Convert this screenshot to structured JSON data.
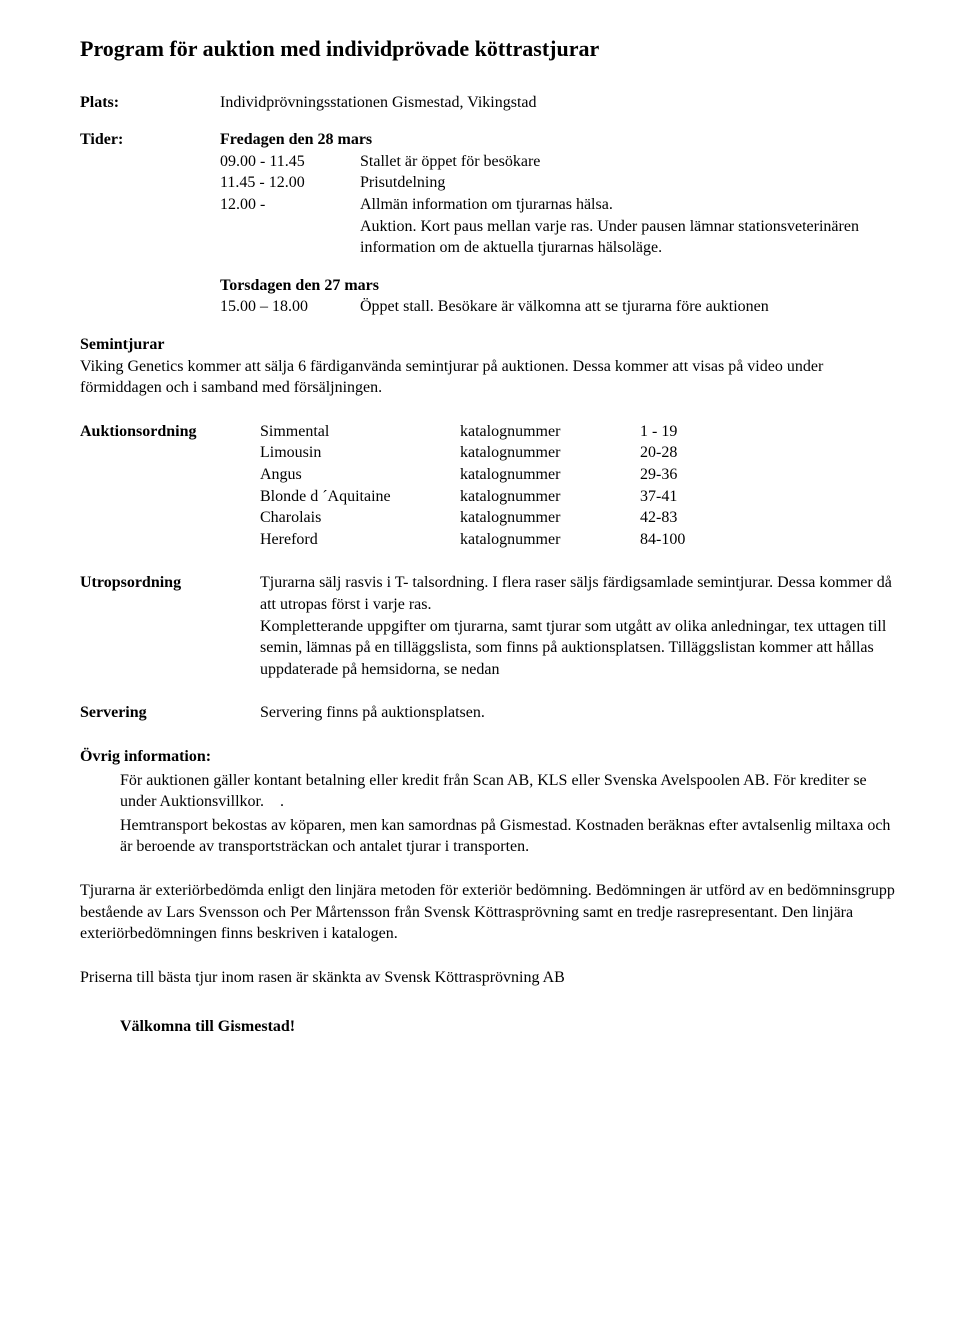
{
  "title": "Program för auktion med individprövade köttrastjurar",
  "plats": {
    "label": "Plats",
    "text": "Individprövningsstationen Gismestad, Vikingstad"
  },
  "tider": {
    "label": "Tider",
    "day1": {
      "heading": "Fredagen den 28 mars"
    },
    "sched": [
      {
        "time": "09.00 - 11.45",
        "desc": "Stallet är öppet för besökare"
      },
      {
        "time": "11.45 - 12.00",
        "desc": "Prisutdelning"
      },
      {
        "time": "12.00 -",
        "desc": "Allmän information om tjurarnas hälsa."
      }
    ],
    "note1": "Auktion. Kort paus mellan varje ras. Under pausen lämnar stationsveterinären information om de aktuella tjurarnas hälsoläge.",
    "day2": {
      "heading": "Torsdagen den 27 mars"
    },
    "sched2": {
      "time": "15.00 – 18.00",
      "desc": "Öppet stall. Besökare är välkomna att se tjurarna före auktionen"
    }
  },
  "semintjurar": {
    "heading": "Semintjurar",
    "text": "Viking Genetics kommer att sälja 6 färdiganvända semintjurar på auktionen. Dessa kommer att visas på video under förmiddagen och i samband med försäljningen."
  },
  "auktionsordning": {
    "label": "Auktionsordning",
    "katalog_word": "katalognummer",
    "rows": [
      {
        "breed": "Simmental",
        "range": "1 - 19"
      },
      {
        "breed": "Limousin",
        "range": "20-28"
      },
      {
        "breed": "Angus",
        "range": "29-36"
      },
      {
        "breed": "Blonde d ´Aquitaine",
        "range": "37-41"
      },
      {
        "breed": "Charolais",
        "range": "42-83"
      },
      {
        "breed": "Hereford",
        "range": "84-100"
      }
    ]
  },
  "utropsordning": {
    "label": "Utropsordning",
    "text": "Tjurarna sälj rasvis i T- talsordning. I flera raser säljs färdigsamlade semintjurar. Dessa kommer då att utropas först i varje ras."
  },
  "komplettering": "Kompletterande uppgifter om tjurarna, samt tjurar som utgått av olika anledningar, tex uttagen till semin, lämnas på en tilläggslista, som finns på auktionsplatsen. Tilläggslistan kommer att hållas uppdaterade på hemsidorna, se nedan",
  "servering": {
    "label": "Servering",
    "text": "Servering finns på auktionsplatsen."
  },
  "ovrig": {
    "label": "Övrig information:",
    "p1": "För auktionen gäller kontant betalning eller kredit från Scan AB, KLS eller Svenska Avelspoolen AB. För krediter se under Auktionsvillkor.    .",
    "p2": "Hemtransport bekostas av köparen, men kan samordnas på Gismestad.  Kostnaden beräknas efter avtalsenlig miltaxa och är beroende av transportsträckan och antalet tjurar i transporten."
  },
  "bedomning": "Tjurarna är exteriörbedömda enligt den linjära metoden för exteriör bedömning.  Bedömningen är utförd av en bedömninsgrupp bestående av Lars Svensson och Per Mårtensson från Svensk Köttrasprövning samt en tredje rasrepresentant.  Den linjära exteriörbedömningen finns beskriven i katalogen.",
  "priser": "Priserna till bästa tjur inom rasen är skänkta av Svensk Köttrasprövning AB",
  "welcome": "Välkomna till Gismestad!"
}
